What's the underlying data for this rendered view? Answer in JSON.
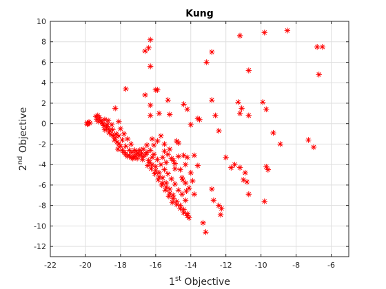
{
  "chart_data": {
    "type": "scatter",
    "title": "Kung",
    "xlabel": {
      "base": "1",
      "sup": "st",
      "rest": " Objective"
    },
    "ylabel": {
      "base": "2",
      "sup": "nd",
      "rest": " Objective"
    },
    "xlim": [
      -22,
      -5
    ],
    "ylim": [
      -13,
      10
    ],
    "xticks": [
      -22,
      -20,
      -18,
      -16,
      -14,
      -12,
      -10,
      -8,
      -6
    ],
    "yticks": [
      -12,
      -10,
      -8,
      -6,
      -4,
      -2,
      0,
      2,
      4,
      6,
      8,
      10
    ],
    "grid": true,
    "marker": "asterisk",
    "marker_color": "#ff0000",
    "series": [
      {
        "points": [
          [
            -19.9,
            0.1
          ],
          [
            -19.85,
            0.0
          ],
          [
            -19.8,
            0.15
          ],
          [
            -19.9,
            -0.05
          ],
          [
            -19.75,
            0.05
          ],
          [
            -19.4,
            0.7
          ],
          [
            -19.3,
            0.8
          ],
          [
            -19.2,
            0.6
          ],
          [
            -19.35,
            0.4
          ],
          [
            -19.25,
            0.2
          ],
          [
            -19.1,
            0.3
          ],
          [
            -19.0,
            0.0
          ],
          [
            -18.95,
            -0.2
          ],
          [
            -19.05,
            0.1
          ],
          [
            -18.9,
            0.4
          ],
          [
            -18.8,
            -0.3
          ],
          [
            -18.7,
            -0.5
          ],
          [
            -18.6,
            -0.7
          ],
          [
            -18.75,
            -0.1
          ],
          [
            -18.65,
            -0.9
          ],
          [
            -18.5,
            -1.1
          ],
          [
            -18.4,
            -1.2
          ],
          [
            -18.3,
            -1.4
          ],
          [
            -18.45,
            -0.6
          ],
          [
            -18.35,
            -1.6
          ],
          [
            -18.2,
            -1.8
          ],
          [
            -18.1,
            -2.0
          ],
          [
            -18.0,
            -2.2
          ],
          [
            -18.25,
            -1.0
          ],
          [
            -18.15,
            -2.5
          ],
          [
            -17.9,
            -2.6
          ],
          [
            -17.8,
            -2.8
          ],
          [
            -17.7,
            -3.0
          ],
          [
            -17.6,
            -3.2
          ],
          [
            -17.5,
            -3.1
          ],
          [
            -17.4,
            -3.3
          ],
          [
            -17.3,
            -3.4
          ],
          [
            -17.2,
            -3.2
          ],
          [
            -17.1,
            -3.0
          ],
          [
            -17.0,
            -2.9
          ],
          [
            -18.0,
            -0.5
          ],
          [
            -17.8,
            -1.0
          ],
          [
            -17.6,
            -1.5
          ],
          [
            -17.4,
            -2.0
          ],
          [
            -17.2,
            -2.6
          ],
          [
            -17.9,
            -1.6
          ],
          [
            -17.7,
            -2.2
          ],
          [
            -17.5,
            -2.6
          ],
          [
            -18.1,
            -1.2
          ],
          [
            -17.35,
            -2.8
          ],
          [
            -18.3,
            1.5
          ],
          [
            -18.1,
            0.2
          ],
          [
            -18.5,
            -0.1
          ],
          [
            -18.7,
            0.3
          ],
          [
            -18.9,
            -0.6
          ],
          [
            -17.7,
            3.4
          ],
          [
            -16.6,
            2.8
          ],
          [
            -16.3,
            1.8
          ],
          [
            -16.0,
            3.3
          ],
          [
            -15.9,
            3.3
          ],
          [
            -15.3,
            2.3
          ],
          [
            -14.4,
            1.9
          ],
          [
            -14.2,
            1.4
          ],
          [
            -13.6,
            0.5
          ],
          [
            -12.6,
            0.8
          ],
          [
            -12.8,
            2.3
          ],
          [
            -15.8,
            1.0
          ],
          [
            -15.2,
            0.9
          ],
          [
            -16.3,
            0.8
          ],
          [
            -14.0,
            -0.1
          ],
          [
            -16.6,
            7.1
          ],
          [
            -16.4,
            7.4
          ],
          [
            -16.3,
            8.2
          ],
          [
            -16.3,
            5.6
          ],
          [
            -12.8,
            7.0
          ],
          [
            -13.1,
            6.0
          ],
          [
            -11.2,
            8.6
          ],
          [
            -9.8,
            8.9
          ],
          [
            -8.5,
            9.1
          ],
          [
            -6.8,
            7.5
          ],
          [
            -6.5,
            7.5
          ],
          [
            -6.7,
            4.8
          ],
          [
            -10.7,
            5.2
          ],
          [
            -11.3,
            2.1
          ],
          [
            -11.1,
            1.5
          ],
          [
            -11.2,
            1.0
          ],
          [
            -9.9,
            2.1
          ],
          [
            -9.7,
            1.4
          ],
          [
            -10.7,
            0.8
          ],
          [
            -13.5,
            0.4
          ],
          [
            -12.4,
            -0.7
          ],
          [
            -9.3,
            -0.9
          ],
          [
            -8.9,
            -2.0
          ],
          [
            -7.3,
            -1.6
          ],
          [
            -7.0,
            -2.3
          ],
          [
            -12.0,
            -3.3
          ],
          [
            -11.5,
            -4.0
          ],
          [
            -11.7,
            -4.3
          ],
          [
            -11.2,
            -4.3
          ],
          [
            -10.9,
            -4.8
          ],
          [
            -11.0,
            -5.5
          ],
          [
            -10.8,
            -5.7
          ],
          [
            -9.7,
            -4.2
          ],
          [
            -9.6,
            -4.5
          ],
          [
            -10.7,
            -6.9
          ],
          [
            -9.8,
            -7.6
          ],
          [
            -12.8,
            -6.4
          ],
          [
            -12.7,
            -7.5
          ],
          [
            -12.4,
            -8.0
          ],
          [
            -12.3,
            -8.9
          ],
          [
            -12.25,
            -8.3
          ],
          [
            -13.3,
            -9.7
          ],
          [
            -13.15,
            -10.6
          ],
          [
            -16.0,
            -4.2
          ],
          [
            -15.8,
            -4.8
          ],
          [
            -15.6,
            -5.3
          ],
          [
            -15.4,
            -5.8
          ],
          [
            -15.2,
            -6.4
          ],
          [
            -15.0,
            -7.0
          ],
          [
            -14.8,
            -7.6
          ],
          [
            -14.6,
            -8.0
          ],
          [
            -14.4,
            -8.4
          ],
          [
            -14.2,
            -8.8
          ],
          [
            -14.1,
            -9.2
          ],
          [
            -14.3,
            -7.5
          ],
          [
            -14.5,
            -6.9
          ],
          [
            -14.7,
            -6.5
          ],
          [
            -14.9,
            -5.9
          ],
          [
            -15.1,
            -5.4
          ],
          [
            -15.3,
            -4.9
          ],
          [
            -15.5,
            -4.5
          ],
          [
            -15.7,
            -4.0
          ],
          [
            -15.9,
            -3.5
          ],
          [
            -16.1,
            -3.0
          ],
          [
            -16.3,
            -2.6
          ],
          [
            -16.5,
            -2.8
          ],
          [
            -16.7,
            -3.2
          ],
          [
            -16.4,
            -3.6
          ],
          [
            -16.2,
            -4.0
          ],
          [
            -16.0,
            -4.6
          ],
          [
            -15.8,
            -5.2
          ],
          [
            -15.6,
            -5.8
          ],
          [
            -15.4,
            -6.2
          ],
          [
            -15.2,
            -6.8
          ],
          [
            -15.0,
            -7.3
          ],
          [
            -14.8,
            -7.9
          ],
          [
            -14.6,
            -8.3
          ],
          [
            -14.4,
            -8.7
          ],
          [
            -14.2,
            -9.0
          ],
          [
            -16.2,
            -3.3
          ],
          [
            -16.35,
            -3.8
          ],
          [
            -16.45,
            -4.1
          ],
          [
            -16.25,
            -4.4
          ],
          [
            -16.05,
            -4.9
          ],
          [
            -15.85,
            -5.5
          ],
          [
            -15.65,
            -6.0
          ],
          [
            -15.45,
            -6.5
          ],
          [
            -15.25,
            -7.1
          ],
          [
            -15.05,
            -7.7
          ],
          [
            -16.2,
            -1.5
          ],
          [
            -15.9,
            -1.7
          ],
          [
            -15.7,
            -1.2
          ],
          [
            -15.5,
            -2.0
          ],
          [
            -15.2,
            -2.5
          ],
          [
            -14.8,
            -1.7
          ],
          [
            -14.7,
            -1.9
          ],
          [
            -14.4,
            -3.1
          ],
          [
            -14.2,
            -3.3
          ],
          [
            -13.8,
            -3.1
          ],
          [
            -13.6,
            -4.1
          ],
          [
            -14.3,
            -4.0
          ],
          [
            -14.0,
            -4.8
          ],
          [
            -13.9,
            -5.6
          ],
          [
            -13.8,
            -6.9
          ],
          [
            -14.1,
            -6.3
          ],
          [
            -14.6,
            -4.5
          ],
          [
            -14.9,
            -3.9
          ],
          [
            -15.1,
            -3.4
          ],
          [
            -15.3,
            -3.0
          ],
          [
            -15.0,
            -3.6
          ],
          [
            -14.5,
            -5.3
          ],
          [
            -14.3,
            -5.8
          ],
          [
            -14.9,
            -4.4
          ],
          [
            -15.6,
            -3.3
          ],
          [
            -15.4,
            -3.8
          ],
          [
            -16.1,
            -2.1
          ],
          [
            -15.5,
            -2.7
          ],
          [
            -14.7,
            -3.2
          ],
          [
            -14.45,
            -5.5
          ],
          [
            -14.25,
            -6.6
          ],
          [
            -16.9,
            -2.6
          ],
          [
            -16.7,
            -2.5
          ],
          [
            -16.5,
            -2.1
          ],
          [
            -16.9,
            -3.1
          ],
          [
            -17.05,
            -3.4
          ],
          [
            -17.25,
            -3.3
          ],
          [
            -16.8,
            -2.9
          ],
          [
            -16.55,
            -3.0
          ],
          [
            -16.75,
            -3.5
          ],
          [
            -17.1,
            -2.7
          ]
        ]
      }
    ]
  }
}
